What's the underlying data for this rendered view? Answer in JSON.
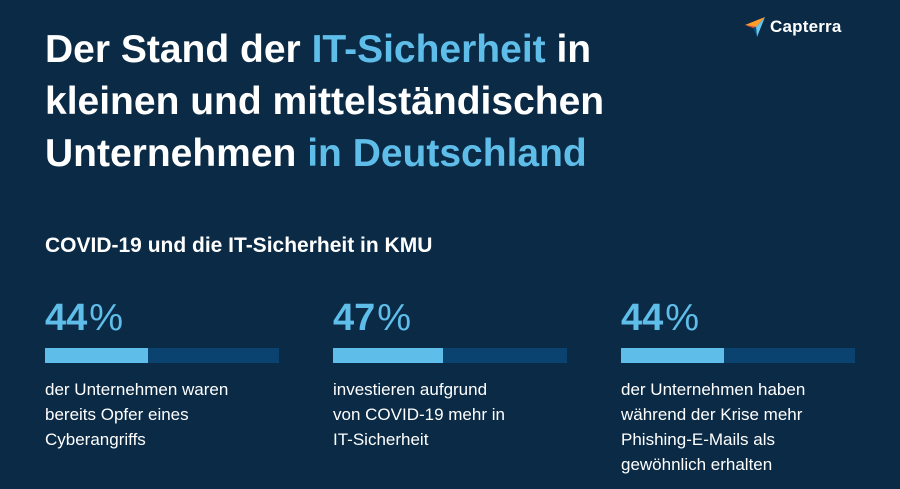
{
  "logo": {
    "text": "Capterra"
  },
  "title": {
    "part1": "Der Stand der ",
    "highlight1": "IT-Sicherheit",
    "part2": " in",
    "line2": "kleinen und mittelständischen",
    "line3_part": "Unternehmen ",
    "highlight2": "in Deutschland"
  },
  "subtitle": "COVID-19 und die IT-Sicherheit in KMU",
  "stats": [
    {
      "value": "44",
      "unit": "%",
      "fraction": 0.44,
      "lines": [
        "der Unternehmen waren",
        "bereits Opfer eines",
        "Cyberangriffs"
      ]
    },
    {
      "value": "47",
      "unit": "%",
      "fraction": 0.47,
      "lines": [
        "investieren aufgrund",
        "von COVID-19 mehr in",
        "IT-Sicherheit"
      ]
    },
    {
      "value": "44",
      "unit": "%",
      "fraction": 0.44,
      "lines": [
        "der Unternehmen haben",
        "während der Krise mehr",
        "Phishing-E-Mails als",
        "gewöhnlich erhalten"
      ]
    }
  ],
  "colors": {
    "background": "#0b2a45",
    "accent": "#5fbde9",
    "bar_track": "#0a4270",
    "text": "#ffffff"
  }
}
